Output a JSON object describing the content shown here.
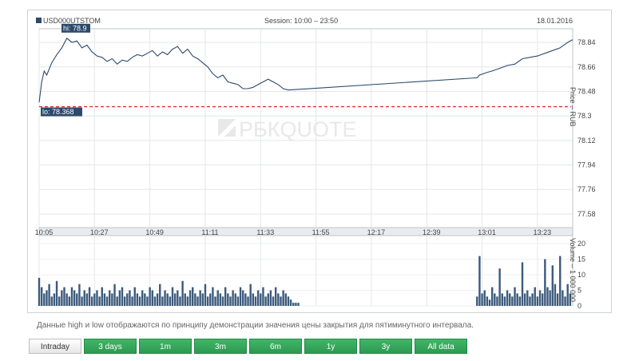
{
  "header": {
    "symbol": "USD000UTSTOM",
    "session": "Session: 10:00 – 23:50",
    "date": "18.01.2016"
  },
  "watermark": "РБКQUOTE",
  "colors": {
    "price_line": "#2c4a6b",
    "volume_bar": "#3c5a7c",
    "lo_line": "#d9362b",
    "label_bg": "#2c4a6b",
    "accent_green": "#2c9a52"
  },
  "chart_data": [
    {
      "type": "line",
      "name": "price",
      "title": "",
      "ylabel": "Price – RUB",
      "hi_label": "hi: 78.9",
      "lo_label": "lo: 78.368",
      "hi": 78.9,
      "lo": 78.368,
      "ylim": [
        77.48,
        78.94
      ],
      "yticks": [
        77.58,
        77.76,
        77.94,
        78.12,
        78.3,
        78.48,
        78.66,
        78.84
      ],
      "xticks": [
        "10:05",
        "10:27",
        "10:49",
        "11:11",
        "11:33",
        "11:55",
        "12:17",
        "12:39",
        "13:01",
        "13:23"
      ],
      "x_start": "10:05",
      "x_end": "13:37",
      "grid": true,
      "series": [
        {
          "x": [
            "10:05",
            "10:06",
            "10:07",
            "10:08",
            "10:10",
            "10:12",
            "10:14",
            "10:16",
            "10:18",
            "10:20",
            "10:22",
            "10:24",
            "10:26",
            "10:28",
            "10:30",
            "10:32",
            "10:34",
            "10:36",
            "10:38",
            "10:40",
            "10:42",
            "10:44",
            "10:46",
            "10:48",
            "10:50",
            "10:52",
            "10:54",
            "10:56",
            "10:58",
            "11:00",
            "11:02",
            "11:04",
            "11:06",
            "11:08",
            "11:10",
            "11:12",
            "11:14",
            "11:16",
            "11:18",
            "11:20",
            "11:22",
            "11:24",
            "11:26",
            "11:28",
            "11:30",
            "11:32",
            "11:34",
            "11:36",
            "11:38",
            "11:40",
            "11:42",
            "11:44",
            "12:59",
            "13:00",
            "13:03",
            "13:05",
            "13:08",
            "13:11",
            "13:14",
            "13:17",
            "13:20",
            "13:23",
            "13:26",
            "13:29",
            "13:32",
            "13:35",
            "13:37"
          ],
          "y": [
            78.4,
            78.55,
            78.63,
            78.6,
            78.69,
            78.75,
            78.8,
            78.87,
            78.84,
            78.85,
            78.8,
            78.82,
            78.77,
            78.74,
            78.73,
            78.7,
            78.72,
            78.68,
            78.71,
            78.7,
            78.73,
            78.75,
            78.74,
            78.76,
            78.78,
            78.74,
            78.77,
            78.75,
            78.79,
            78.81,
            78.76,
            78.79,
            78.74,
            78.72,
            78.69,
            78.66,
            78.61,
            78.58,
            78.6,
            78.55,
            78.54,
            78.53,
            78.5,
            78.5,
            78.51,
            78.53,
            78.55,
            78.57,
            78.55,
            78.53,
            78.5,
            78.49,
            78.58,
            78.6,
            78.62,
            78.63,
            78.65,
            78.67,
            78.68,
            78.72,
            78.73,
            78.74,
            78.76,
            78.78,
            78.8,
            78.84,
            78.86
          ]
        }
      ]
    },
    {
      "type": "bar",
      "name": "volume",
      "ylabel": "Volume – 1 000 000",
      "ylim": [
        0,
        20
      ],
      "yticks": [
        0,
        5,
        10,
        15,
        20
      ],
      "segments": [
        {
          "start": "10:05",
          "step_minutes": 1,
          "values": [
            9,
            6,
            4,
            5,
            7,
            3,
            4,
            8,
            3,
            5,
            6,
            4,
            3,
            6,
            5,
            4,
            7,
            3,
            5,
            4,
            6,
            3,
            4,
            5,
            3,
            6,
            4,
            3,
            5,
            4,
            7,
            3,
            5,
            6,
            3,
            4,
            5,
            3,
            6,
            4,
            3,
            5,
            4,
            3,
            6,
            5,
            3,
            4,
            7,
            3,
            5,
            4,
            3,
            6,
            4,
            5,
            3,
            8,
            4,
            3,
            5,
            6,
            4,
            3,
            5,
            4,
            7,
            3,
            4,
            6,
            3,
            5,
            4,
            3,
            6,
            4,
            3,
            5,
            4,
            3,
            6,
            5,
            4,
            3,
            7,
            4,
            3,
            5,
            4,
            6,
            3,
            4,
            5,
            3,
            6,
            4,
            3,
            5,
            4,
            3,
            2,
            1,
            1,
            1
          ]
        },
        {
          "start": "12:59",
          "step_minutes": 1,
          "values": [
            3,
            16,
            4,
            5,
            3,
            2,
            6,
            4,
            3,
            12,
            4,
            3,
            5,
            4,
            3,
            6,
            4,
            3,
            14,
            4,
            5,
            3,
            4,
            6,
            3,
            5,
            4,
            15,
            6,
            5,
            13,
            7,
            4,
            16,
            5,
            3,
            7,
            4
          ]
        }
      ]
    }
  ],
  "note": "Данные high и low отображаются по принципу демонстрации значения цены закрытия для пятиминутного интервала.",
  "tabs": [
    {
      "label": "Intraday",
      "active": true
    },
    {
      "label": "3 days",
      "active": false
    },
    {
      "label": "1m",
      "active": false
    },
    {
      "label": "3m",
      "active": false
    },
    {
      "label": "6m",
      "active": false
    },
    {
      "label": "1y",
      "active": false
    },
    {
      "label": "3y",
      "active": false
    },
    {
      "label": "All data",
      "active": false
    }
  ]
}
